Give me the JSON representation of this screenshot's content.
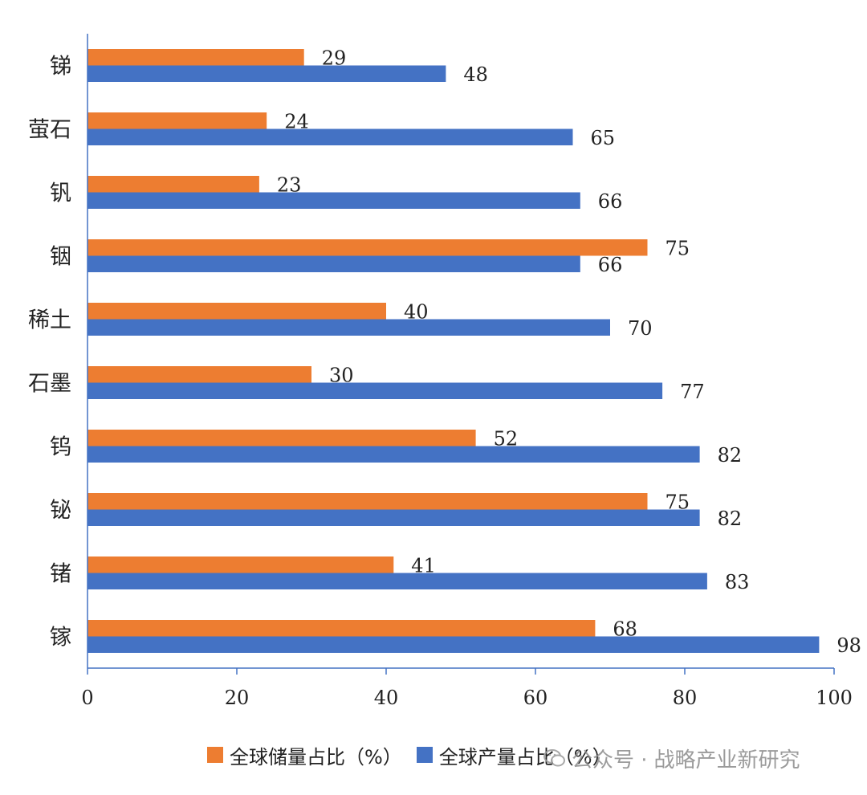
{
  "chart_data": {
    "type": "bar",
    "orientation": "horizontal",
    "categories": [
      "锑",
      "萤石",
      "钒",
      "铟",
      "稀土",
      "石墨",
      "钨",
      "铋",
      "锗",
      "镓"
    ],
    "series": [
      {
        "name": "全球储量占比（%）",
        "color": "#ED7D31",
        "values": [
          29,
          24,
          23,
          75,
          40,
          30,
          52,
          75,
          41,
          68
        ]
      },
      {
        "name": "全球产量占比（%）",
        "color": "#4472C4",
        "values": [
          48,
          65,
          66,
          66,
          70,
          77,
          82,
          82,
          83,
          98
        ]
      }
    ],
    "xlim": [
      0,
      100
    ],
    "xticks": [
      0,
      20,
      40,
      60,
      80,
      100
    ],
    "legend_position": "bottom",
    "grid": false,
    "axis_color": "#4472C4"
  },
  "watermark": {
    "prefix": "公众号 ·",
    "name": "战略产业新研究"
  }
}
